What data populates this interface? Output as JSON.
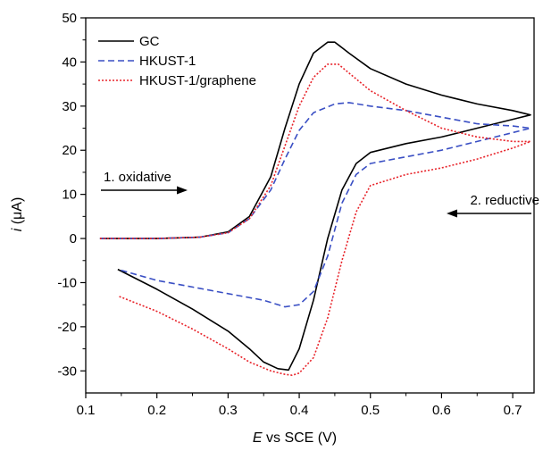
{
  "chart_data": {
    "type": "line",
    "xlabel_italic": "E",
    "xlabel_rest": " vs SCE (V)",
    "ylabel_italic": "i",
    "ylabel_rest": " (μA)",
    "xlim": [
      0.1,
      0.73
    ],
    "ylim": [
      -35,
      50
    ],
    "x_ticks": [
      0.1,
      0.2,
      0.3,
      0.4,
      0.5,
      0.6,
      0.7
    ],
    "x_tick_labels": [
      "0.1",
      "0.2",
      "0.3",
      "0.4",
      "0.5",
      "0.6",
      "0.7"
    ],
    "y_ticks": [
      -30,
      -20,
      -10,
      0,
      10,
      20,
      30,
      40,
      50
    ],
    "y_tick_labels": [
      "-30",
      "-20",
      "-10",
      "0",
      "10",
      "20",
      "30",
      "40",
      "50"
    ],
    "grid": false,
    "legend_position": "top-left",
    "annotations": {
      "oxidative": "1. oxidative",
      "reductive": "2. reductive"
    },
    "series": [
      {
        "name": "GC",
        "color": "#000000",
        "dash": "solid",
        "x": [
          0.12,
          0.2,
          0.26,
          0.3,
          0.33,
          0.36,
          0.38,
          0.4,
          0.42,
          0.44,
          0.45,
          0.47,
          0.5,
          0.55,
          0.6,
          0.65,
          0.7,
          0.725,
          0.7,
          0.65,
          0.6,
          0.55,
          0.5,
          0.48,
          0.46,
          0.44,
          0.42,
          0.4,
          0.385,
          0.37,
          0.35,
          0.33,
          0.3,
          0.25,
          0.2,
          0.145
        ],
        "y": [
          0,
          0,
          0.3,
          1.5,
          5,
          14,
          25,
          35,
          42,
          44.5,
          44.5,
          42,
          38.5,
          35,
          32.5,
          30.5,
          29,
          28,
          27,
          25,
          23,
          21.5,
          19.5,
          17,
          11,
          0,
          -14,
          -25,
          -29.8,
          -29.5,
          -28,
          -25,
          -21,
          -16,
          -11.5,
          -7
        ]
      },
      {
        "name": "HKUST-1",
        "color": "#3a4fc4",
        "dash": "dashed",
        "x": [
          0.12,
          0.2,
          0.26,
          0.3,
          0.33,
          0.36,
          0.38,
          0.4,
          0.42,
          0.45,
          0.47,
          0.5,
          0.55,
          0.6,
          0.65,
          0.7,
          0.725,
          0.7,
          0.65,
          0.6,
          0.55,
          0.5,
          0.48,
          0.46,
          0.44,
          0.42,
          0.4,
          0.38,
          0.35,
          0.3,
          0.25,
          0.2,
          0.145
        ],
        "y": [
          0,
          0,
          0.3,
          1.3,
          4.5,
          11,
          18,
          24.5,
          28.5,
          30.5,
          30.8,
          30,
          29,
          27.5,
          26,
          25.5,
          25,
          24,
          22,
          20,
          18.5,
          17,
          14.5,
          8,
          -4,
          -12,
          -15,
          -15.5,
          -14,
          -12.5,
          -11,
          -9.5,
          -7
        ]
      },
      {
        "name": "HKUST-1/graphene",
        "color": "#e8232a",
        "dash": "dotted",
        "x": [
          0.12,
          0.2,
          0.26,
          0.3,
          0.33,
          0.36,
          0.38,
          0.4,
          0.42,
          0.44,
          0.455,
          0.47,
          0.5,
          0.55,
          0.6,
          0.65,
          0.7,
          0.725,
          0.7,
          0.65,
          0.6,
          0.55,
          0.5,
          0.48,
          0.46,
          0.44,
          0.42,
          0.4,
          0.39,
          0.38,
          0.36,
          0.33,
          0.3,
          0.25,
          0.2,
          0.145
        ],
        "y": [
          0,
          0,
          0.3,
          1.3,
          4.5,
          12,
          21,
          30,
          36.5,
          39.5,
          39.5,
          37.5,
          33.5,
          29,
          25,
          23,
          22,
          22,
          20.5,
          18,
          16,
          14.5,
          12,
          6,
          -5,
          -18,
          -27,
          -30.5,
          -31,
          -30.8,
          -30,
          -28,
          -25,
          -20.5,
          -16.5,
          -13
        ]
      }
    ]
  }
}
